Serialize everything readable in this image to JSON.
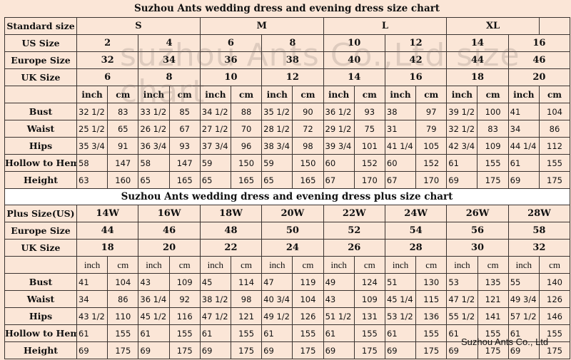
{
  "standard_chart": {
    "title": "Suzhou Ants wedding dress and evening dress size chart",
    "standard_size_label": "Standard size",
    "standard_sizes": [
      {
        "label": "S",
        "span": 4
      },
      {
        "label": "M",
        "span": 4
      },
      {
        "label": "L",
        "span": 4
      },
      {
        "label": "XL",
        "span": 3
      },
      {
        "label": "",
        "span": 1
      }
    ],
    "size_rows": [
      {
        "label": "US Size",
        "values": [
          "2",
          "4",
          "6",
          "8",
          "10",
          "12",
          "14",
          "16"
        ]
      },
      {
        "label": "Europe Size",
        "values": [
          "32",
          "34",
          "36",
          "38",
          "40",
          "42",
          "44",
          "46"
        ]
      },
      {
        "label": "UK Size",
        "values": [
          "6",
          "8",
          "10",
          "12",
          "14",
          "16",
          "18",
          "20"
        ]
      }
    ],
    "units": [
      "inch",
      "cm"
    ],
    "measure_rows": [
      {
        "label": "Bust",
        "values": [
          "32 1/2",
          "83",
          "33 1/2",
          "85",
          "34 1/2",
          "88",
          "35 1/2",
          "90",
          "36 1/2",
          "93",
          "38",
          "97",
          "39 1/2",
          "100",
          "41",
          "104"
        ]
      },
      {
        "label": "Waist",
        "values": [
          "25 1/2",
          "65",
          "26 1/2",
          "67",
          "27 1/2",
          "70",
          "28 1/2",
          "72",
          "29 1/2",
          "75",
          "31",
          "79",
          "32 1/2",
          "83",
          "34",
          "86"
        ]
      },
      {
        "label": "Hips",
        "values": [
          "35 3/4",
          "91",
          "36 3/4",
          "93",
          "37 3/4",
          "96",
          "38 3/4",
          "98",
          "39 3/4",
          "101",
          "41 1/4",
          "105",
          "42 3/4",
          "109",
          "44 1/4",
          "112"
        ]
      },
      {
        "label": "Hollow to Hem",
        "values": [
          "58",
          "147",
          "58",
          "147",
          "59",
          "150",
          "59",
          "150",
          "60",
          "152",
          "60",
          "152",
          "61",
          "155",
          "61",
          "155"
        ]
      },
      {
        "label": "Height",
        "values": [
          "63",
          "160",
          "65",
          "165",
          "65",
          "165",
          "65",
          "165",
          "67",
          "170",
          "67",
          "170",
          "69",
          "175",
          "69",
          "175"
        ]
      }
    ]
  },
  "plus_chart": {
    "title": "Suzhou Ants wedding dress and evening dress plus size chart",
    "size_rows": [
      {
        "label": "Plus Size(US)",
        "values": [
          "14W",
          "16W",
          "18W",
          "20W",
          "22W",
          "24W",
          "26W",
          "28W"
        ]
      },
      {
        "label": "Europe Size",
        "values": [
          "44",
          "46",
          "48",
          "50",
          "52",
          "54",
          "56",
          "58"
        ]
      },
      {
        "label": "UK Size",
        "values": [
          "18",
          "20",
          "22",
          "24",
          "26",
          "28",
          "30",
          "32"
        ]
      }
    ],
    "units": [
      "inch",
      "cm"
    ],
    "measure_rows": [
      {
        "label": "Bust",
        "values": [
          "41",
          "104",
          "43",
          "109",
          "45",
          "114",
          "47",
          "119",
          "49",
          "124",
          "51",
          "130",
          "53",
          "135",
          "55",
          "140"
        ]
      },
      {
        "label": "Waist",
        "values": [
          "34",
          "86",
          "36 1/4",
          "92",
          "38 1/2",
          "98",
          "40 3/4",
          "104",
          "43",
          "109",
          "45 1/4",
          "115",
          "47 1/2",
          "121",
          "49 3/4",
          "126"
        ]
      },
      {
        "label": "Hips",
        "values": [
          "43 1/2",
          "110",
          "45 1/2",
          "116",
          "47 1/2",
          "121",
          "49 1/2",
          "126",
          "51 1/2",
          "131",
          "53 1/2",
          "136",
          "55 1/2",
          "141",
          "57 1/2",
          "146"
        ]
      },
      {
        "label": "Hollow to Hem",
        "values": [
          "61",
          "155",
          "61",
          "155",
          "61",
          "155",
          "61",
          "155",
          "61",
          "155",
          "61",
          "155",
          "61",
          "155",
          "61",
          "155"
        ]
      },
      {
        "label": "Height",
        "values": [
          "69",
          "175",
          "69",
          "175",
          "69",
          "175",
          "69",
          "175",
          "69",
          "175",
          "69",
          "175",
          "69",
          "175",
          "69",
          "175"
        ]
      }
    ]
  },
  "watermark": "suzhou Ants Co.,Ltd size chart",
  "footer": "Suzhou Ants Co., Ltd"
}
